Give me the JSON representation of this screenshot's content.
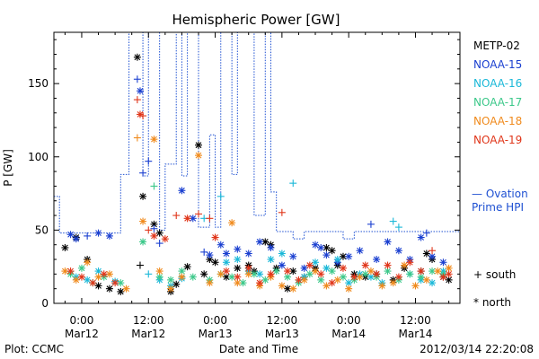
{
  "colors": {
    "METP-02": "#000000",
    "NOAA-15": "#1a3fd0",
    "NOAA-16": "#1ab8d8",
    "NOAA-17": "#3cc88a",
    "NOAA-18": "#f08a1c",
    "NOAA-19": "#e0361a",
    "ovation": "#1e50d2"
  },
  "chart_data": {
    "type": "scatter",
    "title": "Hemispheric Power [GW]",
    "xlabel": "Date and Time",
    "ylabel": "P [GW]",
    "ylim": [
      0,
      185
    ],
    "xlim_hours": [
      -5,
      68
    ],
    "x_unit": "hours since Mar12 00:00",
    "x_ticks": [
      {
        "x": 0,
        "time": "0:00",
        "date": "Mar12"
      },
      {
        "x": 12,
        "time": "12:00",
        "date": "Mar12"
      },
      {
        "x": 24,
        "time": "0:00",
        "date": "Mar13"
      },
      {
        "x": 36,
        "time": "12:00",
        "date": "Mar13"
      },
      {
        "x": 48,
        "time": "0:00",
        "date": "Mar14"
      },
      {
        "x": 60,
        "time": "12:00",
        "date": "Mar14"
      }
    ],
    "y_ticks": [
      0,
      50,
      100,
      150
    ],
    "legend": [
      "METP-02",
      "NOAA-15",
      "NOAA-16",
      "NOAA-17",
      "NOAA-18",
      "NOAA-19"
    ],
    "legend_ovation": [
      "— Ovation",
      "Prime HPI"
    ],
    "marker_key": [
      {
        "symbol": "+",
        "label": "south"
      },
      {
        "symbol": "*",
        "label": "north"
      }
    ],
    "ovation_step": [
      [
        -5,
        73
      ],
      [
        -4,
        48
      ],
      [
        6,
        48
      ],
      [
        7,
        88
      ],
      [
        8.5,
        185
      ],
      [
        11,
        87
      ],
      [
        12,
        185
      ],
      [
        14,
        50
      ],
      [
        15,
        95
      ],
      [
        17,
        185
      ],
      [
        18,
        87
      ],
      [
        19,
        185
      ],
      [
        21,
        52
      ],
      [
        23,
        115
      ],
      [
        24,
        52
      ],
      [
        25,
        185
      ],
      [
        27,
        88
      ],
      [
        28,
        185
      ],
      [
        31,
        60
      ],
      [
        33,
        185
      ],
      [
        34,
        76
      ],
      [
        35,
        49
      ],
      [
        36,
        49
      ],
      [
        38,
        44
      ],
      [
        40,
        49
      ],
      [
        47,
        44
      ],
      [
        49,
        49
      ],
      [
        68,
        49
      ]
    ],
    "series": [
      {
        "name": "METP-02",
        "points": [
          [
            -3,
            38,
            "*"
          ],
          [
            -1,
            45,
            "*"
          ],
          [
            1,
            30,
            "*"
          ],
          [
            3,
            12,
            "*"
          ],
          [
            5,
            10,
            "*"
          ],
          [
            7,
            8,
            "*"
          ],
          [
            10,
            168,
            "*"
          ],
          [
            11,
            73,
            "*"
          ],
          [
            10.5,
            26,
            "+"
          ],
          [
            13,
            54,
            "*"
          ],
          [
            14,
            48,
            "*"
          ],
          [
            16,
            8,
            "*"
          ],
          [
            17,
            13,
            "*"
          ],
          [
            19,
            25,
            "*"
          ],
          [
            21,
            108,
            "*"
          ],
          [
            22,
            20,
            "*"
          ],
          [
            23,
            30,
            "*"
          ],
          [
            24,
            28,
            "*"
          ],
          [
            26,
            18,
            "*"
          ],
          [
            28,
            24,
            "*"
          ],
          [
            30,
            26,
            "*"
          ],
          [
            31,
            22,
            "*"
          ],
          [
            33,
            42,
            "*"
          ],
          [
            34,
            40,
            "*"
          ],
          [
            35,
            24,
            "*"
          ],
          [
            37,
            10,
            "*"
          ],
          [
            38,
            22,
            "*"
          ],
          [
            40,
            18,
            "*"
          ],
          [
            42,
            24,
            "*"
          ],
          [
            44,
            38,
            "*"
          ],
          [
            45,
            36,
            "*"
          ],
          [
            46,
            26,
            "*"
          ],
          [
            47,
            32,
            "*"
          ],
          [
            49,
            20,
            "*"
          ],
          [
            51,
            18,
            "*"
          ],
          [
            53,
            20,
            "*"
          ],
          [
            56,
            16,
            "*"
          ],
          [
            58,
            24,
            "*"
          ],
          [
            61,
            22,
            "*"
          ],
          [
            62,
            34,
            "*"
          ],
          [
            63,
            30,
            "*"
          ],
          [
            65,
            18,
            "*"
          ],
          [
            66,
            16,
            "*"
          ]
        ]
      },
      {
        "name": "NOAA-15",
        "points": [
          [
            -2,
            47,
            "*"
          ],
          [
            -1,
            44,
            "*"
          ],
          [
            1,
            46,
            "+"
          ],
          [
            3,
            48,
            "*"
          ],
          [
            5,
            46,
            "*"
          ],
          [
            10,
            153,
            "+"
          ],
          [
            10.5,
            145,
            "*"
          ],
          [
            11,
            89,
            "+"
          ],
          [
            12,
            97,
            "+"
          ],
          [
            13,
            51,
            "+"
          ],
          [
            14,
            41,
            "+"
          ],
          [
            18,
            77,
            "*"
          ],
          [
            20,
            58,
            "*"
          ],
          [
            22,
            35,
            "+"
          ],
          [
            23,
            33,
            "*"
          ],
          [
            25,
            40,
            "*"
          ],
          [
            26,
            34,
            "*"
          ],
          [
            28,
            37,
            "*"
          ],
          [
            30,
            34,
            "*"
          ],
          [
            32,
            42,
            "*"
          ],
          [
            34,
            38,
            "*"
          ],
          [
            36,
            26,
            "*"
          ],
          [
            38,
            32,
            "*"
          ],
          [
            40,
            24,
            "*"
          ],
          [
            42,
            40,
            "*"
          ],
          [
            43,
            38,
            "*"
          ],
          [
            44,
            33,
            "*"
          ],
          [
            46,
            28,
            "*"
          ],
          [
            48,
            32,
            "*"
          ],
          [
            50,
            36,
            "*"
          ],
          [
            52,
            54,
            "+"
          ],
          [
            53,
            30,
            "*"
          ],
          [
            55,
            42,
            "*"
          ],
          [
            57,
            36,
            "*"
          ],
          [
            59,
            30,
            "*"
          ],
          [
            61,
            45,
            "*"
          ],
          [
            62,
            48,
            "+"
          ],
          [
            63,
            32,
            "*"
          ],
          [
            65,
            28,
            "*"
          ]
        ]
      },
      {
        "name": "NOAA-16",
        "points": [
          [
            -1,
            18,
            "*"
          ],
          [
            1,
            16,
            "*"
          ],
          [
            3,
            22,
            "*"
          ],
          [
            6,
            15,
            "*"
          ],
          [
            12,
            20,
            "+"
          ],
          [
            14,
            16,
            "*"
          ],
          [
            16,
            12,
            "*"
          ],
          [
            18,
            17,
            "*"
          ],
          [
            22,
            58,
            "+"
          ],
          [
            25,
            73,
            "+"
          ],
          [
            26,
            28,
            "*"
          ],
          [
            28,
            30,
            "*"
          ],
          [
            30,
            22,
            "*"
          ],
          [
            32,
            20,
            "*"
          ],
          [
            34,
            30,
            "*"
          ],
          [
            36,
            34,
            "*"
          ],
          [
            38,
            82,
            "+"
          ],
          [
            40,
            18,
            "*"
          ],
          [
            42,
            28,
            "*"
          ],
          [
            44,
            24,
            "*"
          ],
          [
            46,
            30,
            "*"
          ],
          [
            48,
            14,
            "*"
          ],
          [
            50,
            20,
            "*"
          ],
          [
            52,
            18,
            "*"
          ],
          [
            54,
            14,
            "*"
          ],
          [
            56,
            56,
            "+"
          ],
          [
            57,
            52,
            "+"
          ],
          [
            59,
            20,
            "*"
          ],
          [
            61,
            16,
            "*"
          ],
          [
            63,
            14,
            "*"
          ],
          [
            65,
            22,
            "*"
          ]
        ]
      },
      {
        "name": "NOAA-17",
        "points": [
          [
            -2,
            20,
            "*"
          ],
          [
            0,
            24,
            "*"
          ],
          [
            2,
            14,
            "*"
          ],
          [
            4,
            18,
            "*"
          ],
          [
            7,
            14,
            "*"
          ],
          [
            11,
            42,
            "*"
          ],
          [
            13,
            80,
            "+"
          ],
          [
            14,
            18,
            "*"
          ],
          [
            16,
            16,
            "*"
          ],
          [
            18,
            22,
            "*"
          ],
          [
            20,
            18,
            "*"
          ],
          [
            23,
            16,
            "*"
          ],
          [
            25,
            20,
            "*"
          ],
          [
            27,
            18,
            "*"
          ],
          [
            29,
            14,
            "*"
          ],
          [
            31,
            20,
            "*"
          ],
          [
            33,
            16,
            "*"
          ],
          [
            35,
            22,
            "*"
          ],
          [
            37,
            18,
            "*"
          ],
          [
            39,
            14,
            "*"
          ],
          [
            41,
            20,
            "*"
          ],
          [
            43,
            16,
            "*"
          ],
          [
            45,
            22,
            "*"
          ],
          [
            47,
            18,
            "*"
          ],
          [
            49,
            16,
            "*"
          ],
          [
            51,
            20,
            "*"
          ],
          [
            53,
            18,
            "*"
          ],
          [
            55,
            22,
            "*"
          ],
          [
            57,
            16,
            "*"
          ],
          [
            59,
            20,
            "*"
          ],
          [
            61,
            18,
            "*"
          ],
          [
            63,
            22,
            "*"
          ],
          [
            65,
            20,
            "*"
          ]
        ]
      },
      {
        "name": "NOAA-18",
        "points": [
          [
            -3,
            22,
            "*"
          ],
          [
            -1,
            16,
            "*"
          ],
          [
            1,
            28,
            "*"
          ],
          [
            3,
            18,
            "*"
          ],
          [
            5,
            20,
            "*"
          ],
          [
            8,
            10,
            "*"
          ],
          [
            10,
            113,
            "+"
          ],
          [
            11,
            56,
            "*"
          ],
          [
            13,
            112,
            "*"
          ],
          [
            14,
            22,
            "*"
          ],
          [
            16,
            10,
            "*"
          ],
          [
            18,
            18,
            "*"
          ],
          [
            21,
            101,
            "*"
          ],
          [
            23,
            14,
            "*"
          ],
          [
            25,
            20,
            "*"
          ],
          [
            27,
            55,
            "*"
          ],
          [
            28,
            14,
            "*"
          ],
          [
            30,
            20,
            "*"
          ],
          [
            32,
            12,
            "*"
          ],
          [
            34,
            18,
            "*"
          ],
          [
            36,
            12,
            "*"
          ],
          [
            38,
            10,
            "*"
          ],
          [
            40,
            16,
            "*"
          ],
          [
            42,
            22,
            "*"
          ],
          [
            44,
            12,
            "*"
          ],
          [
            46,
            16,
            "*"
          ],
          [
            48,
            10,
            "*"
          ],
          [
            50,
            18,
            "*"
          ],
          [
            52,
            22,
            "*"
          ],
          [
            54,
            12,
            "*"
          ],
          [
            56,
            14,
            "*"
          ],
          [
            58,
            26,
            "*"
          ],
          [
            60,
            12,
            "*"
          ],
          [
            62,
            16,
            "*"
          ],
          [
            64,
            22,
            "*"
          ],
          [
            66,
            24,
            "*"
          ]
        ]
      },
      {
        "name": "NOAA-19",
        "points": [
          [
            -2,
            22,
            "*"
          ],
          [
            0,
            18,
            "*"
          ],
          [
            2,
            14,
            "*"
          ],
          [
            4,
            20,
            "*"
          ],
          [
            6,
            14,
            "*"
          ],
          [
            10,
            139,
            "+"
          ],
          [
            10.5,
            129,
            "*"
          ],
          [
            11,
            128,
            "+"
          ],
          [
            12,
            50,
            "+"
          ],
          [
            13,
            46,
            "*"
          ],
          [
            15,
            44,
            "*"
          ],
          [
            17,
            60,
            "+"
          ],
          [
            19,
            58,
            "*"
          ],
          [
            21,
            61,
            "+"
          ],
          [
            23,
            58,
            "+"
          ],
          [
            24,
            45,
            "*"
          ],
          [
            26,
            22,
            "*"
          ],
          [
            28,
            18,
            "*"
          ],
          [
            30,
            24,
            "*"
          ],
          [
            32,
            14,
            "*"
          ],
          [
            34,
            20,
            "*"
          ],
          [
            36,
            62,
            "+"
          ],
          [
            37,
            22,
            "*"
          ],
          [
            39,
            16,
            "*"
          ],
          [
            41,
            26,
            "*"
          ],
          [
            43,
            20,
            "*"
          ],
          [
            45,
            14,
            "*"
          ],
          [
            47,
            24,
            "*"
          ],
          [
            49,
            18,
            "*"
          ],
          [
            51,
            26,
            "*"
          ],
          [
            53,
            20,
            "*"
          ],
          [
            55,
            26,
            "*"
          ],
          [
            57,
            18,
            "*"
          ],
          [
            59,
            28,
            "*"
          ],
          [
            61,
            22,
            "*"
          ],
          [
            63,
            36,
            "+"
          ],
          [
            65,
            18,
            "*"
          ],
          [
            66,
            20,
            "*"
          ]
        ]
      }
    ]
  },
  "footer": {
    "credit": "Plot: CCMC",
    "timestamp": "2012/03/14 22:20:08"
  }
}
